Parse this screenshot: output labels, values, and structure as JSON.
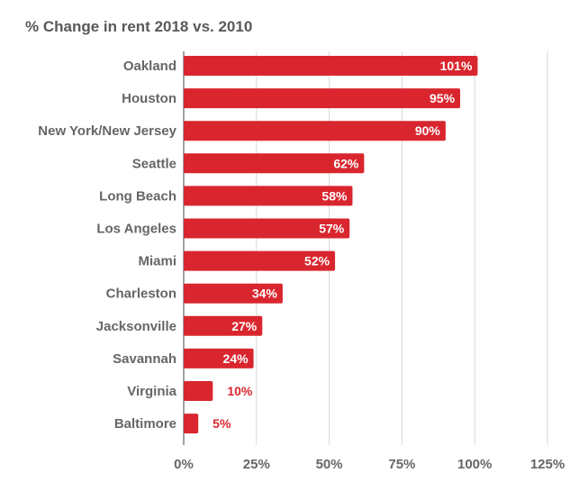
{
  "chart_data": {
    "type": "bar",
    "orientation": "horizontal",
    "title": "% Change in rent 2018 vs. 2010",
    "categories": [
      "Oakland",
      "Houston",
      "New York/New Jersey",
      "Seattle",
      "Long Beach",
      "Los Angeles",
      "Miami",
      "Charleston",
      "Jacksonville",
      "Savannah",
      "Virginia",
      "Baltimore"
    ],
    "values": [
      101,
      95,
      90,
      62,
      58,
      57,
      52,
      34,
      27,
      24,
      10,
      5
    ],
    "value_labels": [
      "101%",
      "95%",
      "90%",
      "62%",
      "58%",
      "57%",
      "52%",
      "34%",
      "27%",
      "24%",
      "10%",
      "5%"
    ],
    "xlim": [
      0,
      125
    ],
    "x_ticks": [
      0,
      25,
      50,
      75,
      100,
      125
    ],
    "x_tick_labels": [
      "0%",
      "25%",
      "50%",
      "75%",
      "100%",
      "125%"
    ],
    "xlabel": "",
    "ylabel": "",
    "grid": true,
    "legend": "none",
    "bar_color": "#d9262e",
    "inside_label_color": "#ffffff",
    "outside_label_color": "#d9262e",
    "grid_color": "#d9d9d9"
  }
}
